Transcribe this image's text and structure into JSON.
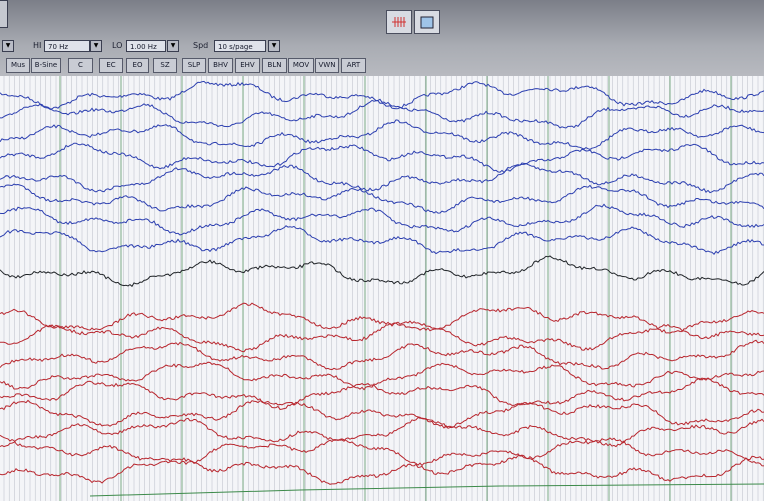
{
  "toolbar": {
    "filters": [
      {
        "label": "HI",
        "value": "70 Hz"
      },
      {
        "label": "LO",
        "value": "1.00 Hz"
      },
      {
        "label": "Spd",
        "value": "10 s/page"
      }
    ],
    "event_buttons": [
      "Mus",
      "B-Sine",
      "C",
      "EC",
      "EO",
      "SZ",
      "SLP",
      "BHV",
      "EHV",
      "BLN",
      "MOV",
      "VWN",
      "ART"
    ]
  }
}
